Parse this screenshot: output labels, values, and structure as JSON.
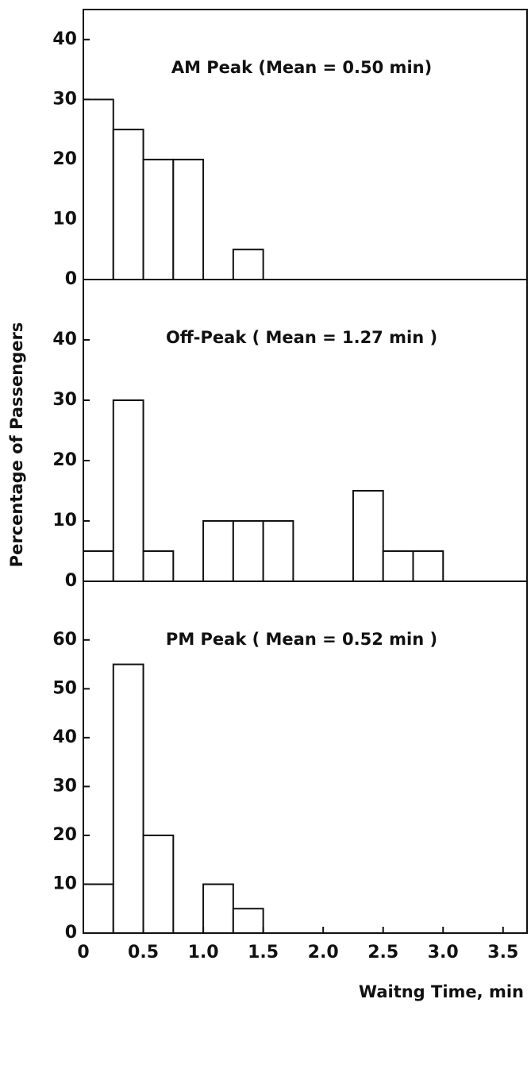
{
  "chart_data": [
    {
      "type": "histogram",
      "title": "AM Peak  (Mean = 0.50 min)",
      "bins": [
        0,
        0.25,
        0.5,
        0.75,
        1.0,
        1.25,
        1.5,
        1.75,
        2.0,
        2.25,
        2.5,
        2.75,
        3.0
      ],
      "values": [
        30,
        25,
        20,
        20,
        0,
        5,
        0,
        0,
        0,
        0,
        0,
        0
      ],
      "xlim": [
        0,
        3.7
      ],
      "ylim": [
        0,
        45
      ],
      "yticks": [
        0,
        10,
        20,
        30,
        40
      ],
      "color": "#ffffff"
    },
    {
      "type": "histogram",
      "title": "Off-Peak  ( Mean = 1.27 min )",
      "ylabel": "Percentage of Passengers",
      "bins": [
        0,
        0.25,
        0.5,
        0.75,
        1.0,
        1.25,
        1.5,
        1.75,
        2.0,
        2.25,
        2.5,
        2.75,
        3.0
      ],
      "values": [
        5,
        30,
        5,
        0,
        10,
        10,
        10,
        0,
        0,
        15,
        5,
        5
      ],
      "xlim": [
        0,
        3.7
      ],
      "ylim": [
        0,
        50
      ],
      "yticks": [
        0,
        10,
        20,
        30,
        40
      ],
      "color": "#ffffff"
    },
    {
      "type": "histogram",
      "title": "PM Peak  ( Mean = 0.52 min )",
      "xlabel": "Waitng Time, min",
      "bins": [
        0,
        0.25,
        0.5,
        0.75,
        1.0,
        1.25,
        1.5,
        1.75,
        2.0,
        2.25,
        2.5,
        2.75,
        3.0
      ],
      "values": [
        10,
        55,
        20,
        0,
        10,
        5,
        0,
        0,
        0,
        0,
        0,
        0
      ],
      "xlim": [
        0,
        3.7
      ],
      "ylim": [
        0,
        72
      ],
      "yticks": [
        0,
        10,
        20,
        30,
        40,
        50,
        60
      ],
      "xticks": [
        0,
        0.5,
        {
          "value": 1,
          "label": "1.0"
        },
        1.5,
        {
          "value": 2,
          "label": "2.0"
        },
        2.5,
        {
          "value": 3,
          "label": "3.0"
        },
        3.5
      ],
      "color": "#ffffff"
    }
  ]
}
